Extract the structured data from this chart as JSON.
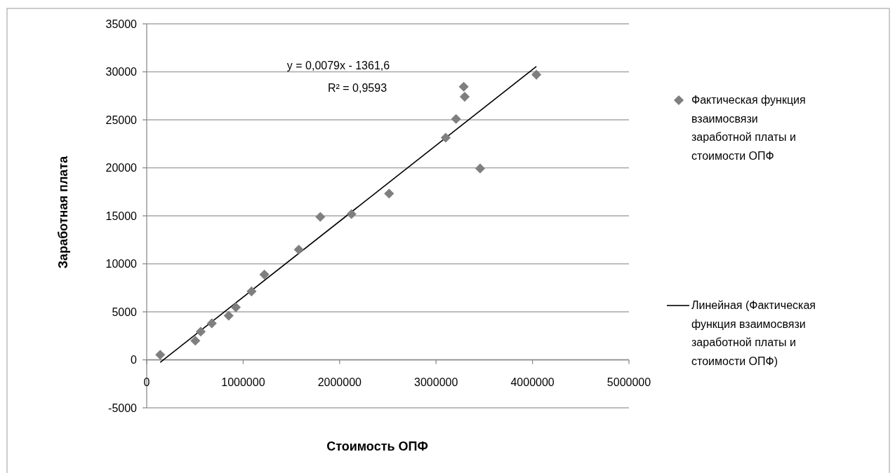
{
  "chart_data": {
    "type": "scatter",
    "xlabel": "Стоимость ОПФ",
    "ylabel": "Заработная плата",
    "xlim": [
      0,
      5000000
    ],
    "xticks": [
      0,
      1000000,
      2000000,
      3000000,
      4000000,
      5000000
    ],
    "ylim": [
      -5000,
      35000
    ],
    "yticks": [
      -5000,
      0,
      5000,
      10000,
      15000,
      20000,
      25000,
      30000,
      35000
    ],
    "grid": "y",
    "legend": "right",
    "marker": "diamond",
    "annotations": [
      "y = 0,0079x - 1361,6",
      "R² = 0,9593"
    ],
    "series": [
      {
        "name": "Фактическая функция взаимосвязи заработной платы и стоимости ОПФ",
        "color": "#7f7f7f",
        "x": [
          140000,
          504000,
          560000,
          675000,
          850000,
          924000,
          1087000,
          1220000,
          1577000,
          1800000,
          2123000,
          2513000,
          3100000,
          3207000,
          3287000,
          3297000,
          3457000,
          4040000
        ],
        "values": [
          530,
          1990,
          2940,
          3800,
          4600,
          5470,
          7130,
          8880,
          11480,
          14890,
          15180,
          17320,
          23140,
          25090,
          28450,
          27400,
          19930,
          29700
        ]
      },
      {
        "name": "Линейная (Фактическая функция взаимосвязи заработной платы и стоимости ОПФ)",
        "type": "line",
        "color": "#000000",
        "marker": "none",
        "x": [
          140000,
          4040000
        ],
        "values": [
          -260,
          30550
        ]
      }
    ]
  }
}
